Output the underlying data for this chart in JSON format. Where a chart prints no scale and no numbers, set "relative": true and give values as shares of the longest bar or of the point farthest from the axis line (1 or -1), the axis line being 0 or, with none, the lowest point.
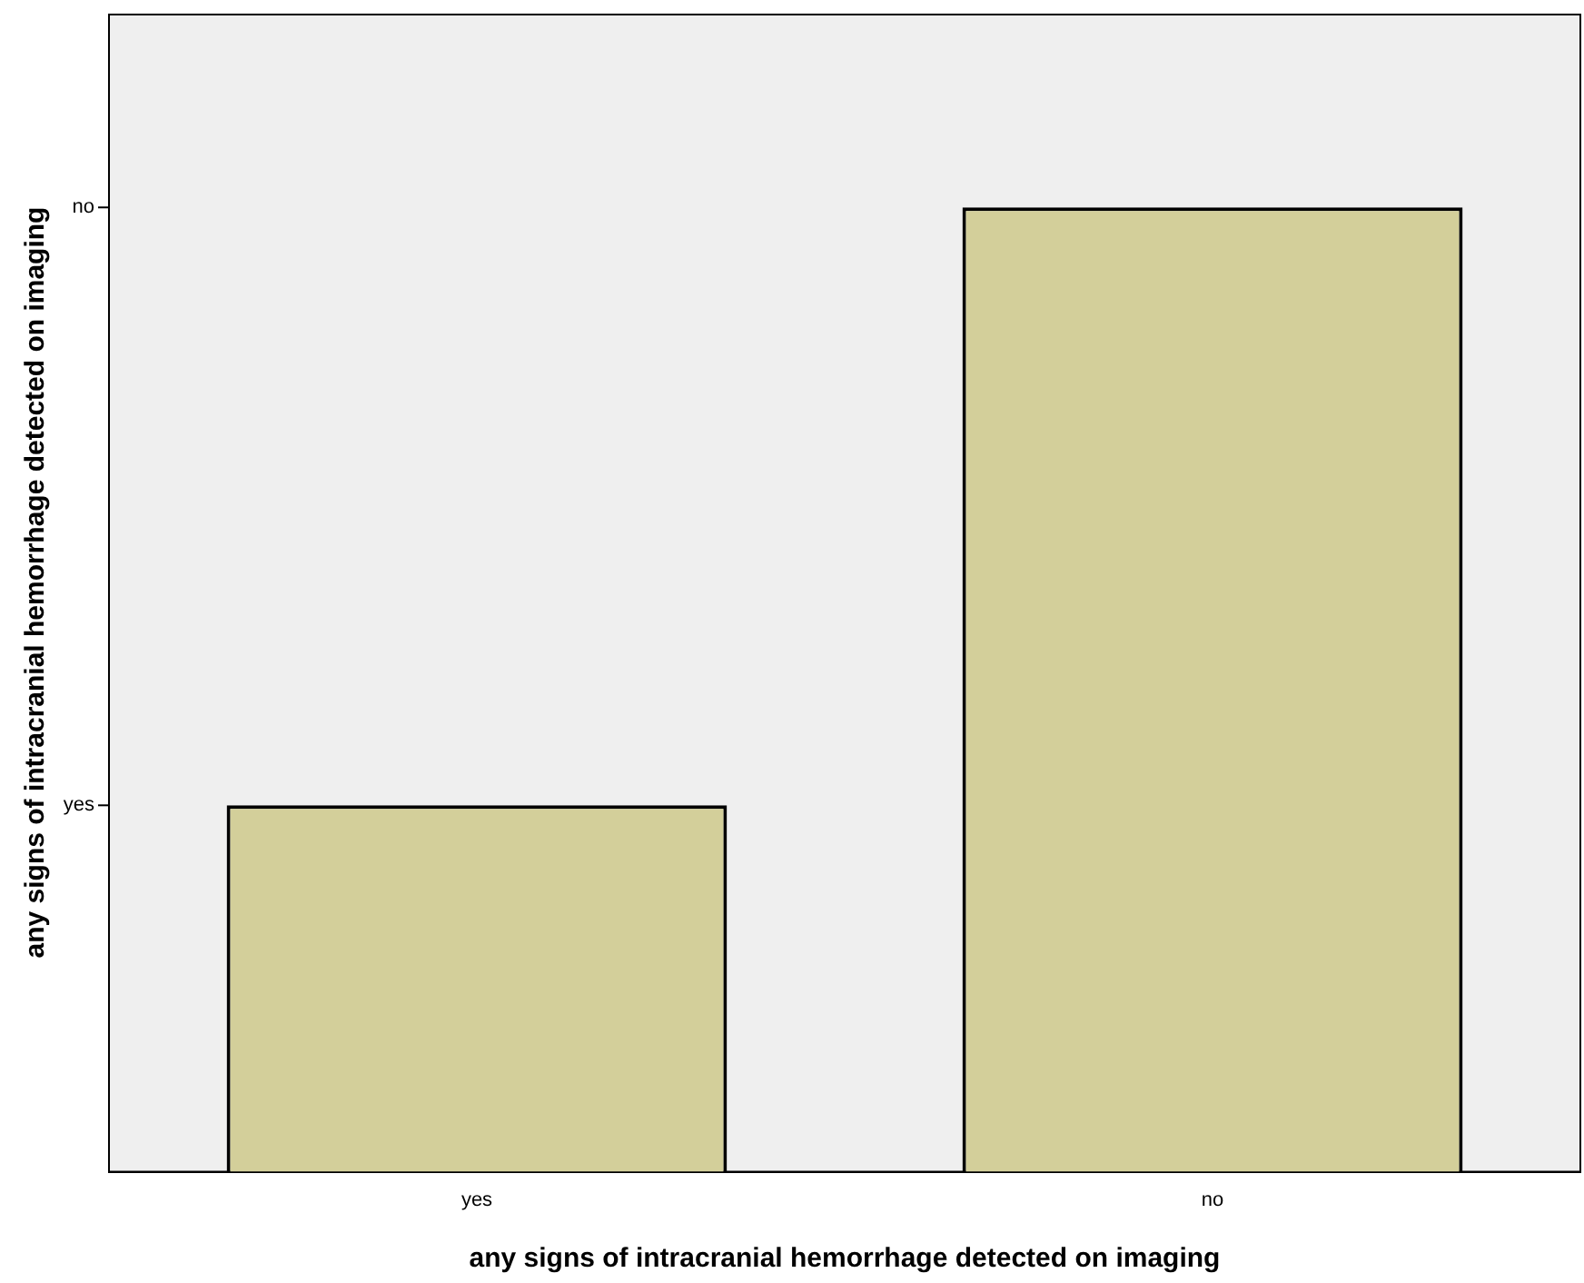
{
  "chart_data": {
    "type": "bar",
    "xlabel": "any signs of intracranial hemorrhage detected on imaging",
    "ylabel": "any signs of intracranial hemorrhage detected on imaging",
    "categories": [
      "yes",
      "no"
    ],
    "values": [
      0.38,
      1
    ],
    "color": "#d3cf9a",
    "relative": true,
    "annotations": [
      "yes",
      "no"
    ],
    "grid": false,
    "legend": false
  }
}
